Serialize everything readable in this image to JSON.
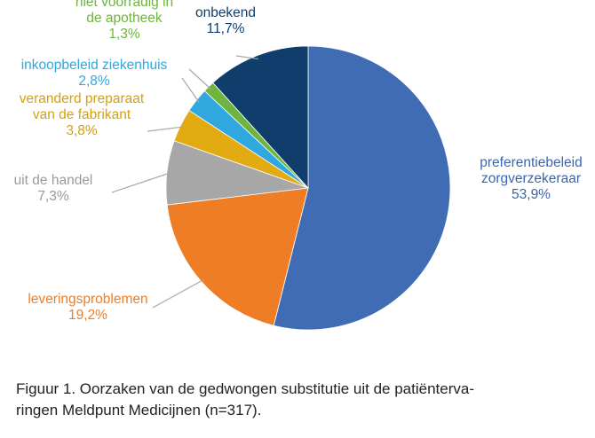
{
  "chart_data": {
    "type": "pie",
    "slices": [
      {
        "lines": [
          "preferentiebeleid",
          "zorgverzekeraar"
        ],
        "value_label": "53,9%",
        "value": 53.9,
        "color": "#3f6cb3"
      },
      {
        "lines": [
          "leveringsproblemen"
        ],
        "value_label": "19,2%",
        "value": 19.2,
        "color": "#ee7d26"
      },
      {
        "lines": [
          "uit de handel"
        ],
        "value_label": "7,3%",
        "value": 7.3,
        "color": "#a7a7a7"
      },
      {
        "lines": [
          "veranderd preparaat",
          "van de fabrikant"
        ],
        "value_label": "3,8%",
        "value": 3.8,
        "color": "#e3ab12"
      },
      {
        "lines": [
          "inkoopbeleid ziekenhuis"
        ],
        "value_label": "2,8%",
        "value": 2.8,
        "color": "#2ea8de"
      },
      {
        "lines": [
          "niet voorradig in",
          "de apotheek"
        ],
        "value_label": "1,3%",
        "value": 1.3,
        "color": "#6eb43f"
      },
      {
        "lines": [
          "onbekend"
        ],
        "value_label": "11,7%",
        "value": 11.7,
        "color": "#103e6c"
      }
    ],
    "start": "12 o'clock",
    "direction": "clockwise"
  },
  "caption": {
    "line1": "Figuur 1. Oorzaken van de gedwongen substitutie uit de patiënterva-",
    "line2": "ringen Meldpunt Medicijnen (n=317)."
  },
  "colors": {
    "label_blue": "#3866b0",
    "label_orange": "#ee7d26",
    "label_gray": "#9a9a9a",
    "label_gold": "#d4a20f",
    "label_lightblue": "#2ea8de",
    "label_green": "#6eb43f",
    "label_navy": "#103e6c",
    "leader": "#a8a8a8"
  }
}
